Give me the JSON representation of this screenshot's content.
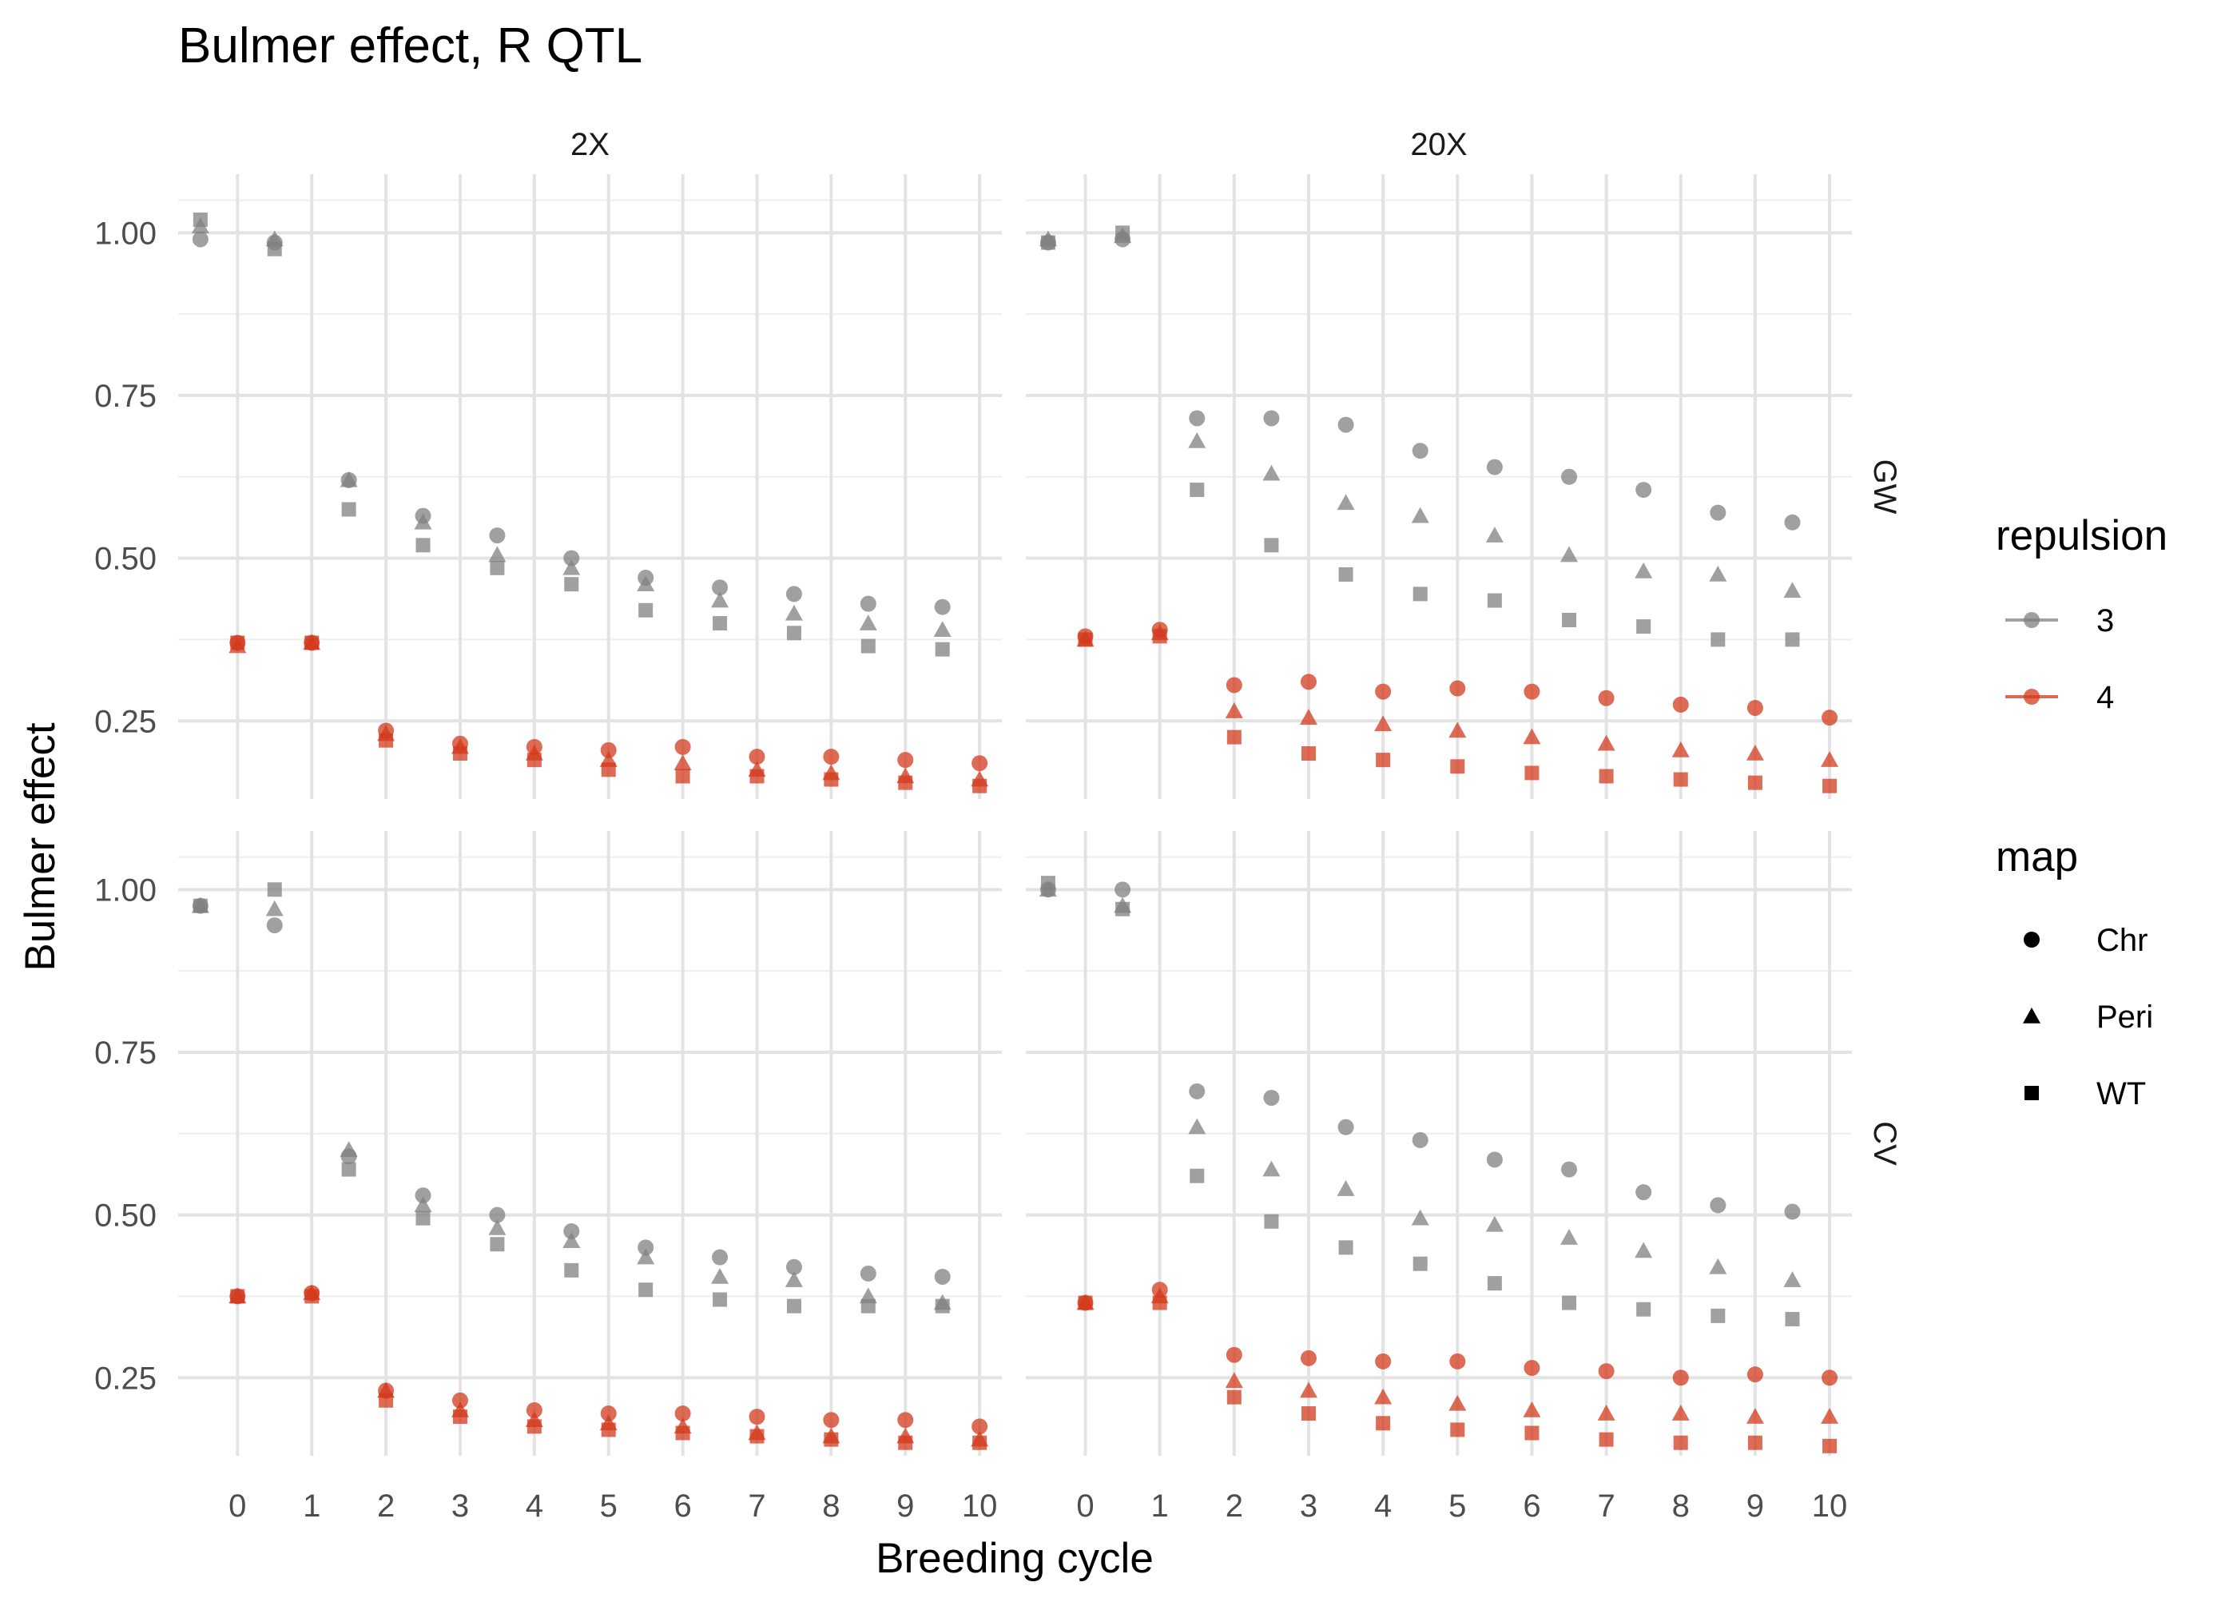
{
  "chart_data": {
    "type": "scatter",
    "title": "Bulmer effect, R QTL",
    "xlabel": "Breeding cycle",
    "ylabel": "Bulmer effect",
    "x_ticks": [
      0,
      1,
      2,
      3,
      4,
      5,
      6,
      7,
      8,
      9,
      10
    ],
    "x_range": [
      -0.8,
      10.3
    ],
    "y_range": [
      0.13,
      1.09
    ],
    "y_ticks": [
      0.25,
      0.5,
      0.75,
      1.0
    ],
    "y_tick_labels": [
      "0.25",
      "0.50",
      "0.75",
      "1.00"
    ],
    "columns": [
      "2X",
      "20X"
    ],
    "rows": [
      "GW",
      "CV"
    ],
    "grid": true,
    "legend_position": "right",
    "colors": {
      "repulsion_3": "#808080",
      "repulsion_4": "#d3391c",
      "grid_major": "#e3e3e3",
      "grid_minor": "#eeeeee",
      "text": "#4d4d4d"
    },
    "legend": {
      "repulsion_title": "repulsion",
      "repulsion_items": [
        "3",
        "4"
      ],
      "map_title": "map",
      "map_items": [
        {
          "label": "Chr",
          "shape": "circle"
        },
        {
          "label": "Peri",
          "shape": "triangle"
        },
        {
          "label": "WT",
          "shape": "square"
        }
      ]
    },
    "panels": [
      {
        "column": "2X",
        "row": "GW",
        "series": [
          {
            "repulsion": "3",
            "x": [
              -0.5,
              0.5,
              1.5,
              2.5,
              3.5,
              4.5,
              5.5,
              6.5,
              7.5,
              8.5,
              9.5
            ],
            "Chr": [
              0.99,
              0.985,
              0.62,
              0.565,
              0.535,
              0.5,
              0.47,
              0.455,
              0.445,
              0.43,
              0.425
            ],
            "Peri": [
              1.01,
              0.99,
              0.62,
              0.555,
              0.505,
              0.485,
              0.46,
              0.435,
              0.415,
              0.4,
              0.39
            ],
            "WT": [
              1.02,
              0.975,
              0.575,
              0.52,
              0.485,
              0.46,
              0.42,
              0.4,
              0.385,
              0.365,
              0.36
            ]
          },
          {
            "repulsion": "4",
            "x": [
              0,
              1,
              2,
              3,
              4,
              5,
              6,
              7,
              8,
              9,
              10
            ],
            "Chr": [
              0.37,
              0.37,
              0.235,
              0.215,
              0.21,
              0.205,
              0.21,
              0.195,
              0.195,
              0.19,
              0.185
            ],
            "Peri": [
              0.365,
              0.37,
              0.23,
              0.21,
              0.2,
              0.19,
              0.185,
              0.175,
              0.17,
              0.165,
              0.16
            ],
            "WT": [
              0.37,
              0.37,
              0.22,
              0.2,
              0.19,
              0.175,
              0.165,
              0.165,
              0.16,
              0.155,
              0.15
            ]
          }
        ]
      },
      {
        "column": "20X",
        "row": "GW",
        "series": [
          {
            "repulsion": "3",
            "x": [
              -0.5,
              0.5,
              1.5,
              2.5,
              3.5,
              4.5,
              5.5,
              6.5,
              7.5,
              8.5,
              9.5
            ],
            "Chr": [
              0.985,
              0.99,
              0.715,
              0.715,
              0.705,
              0.665,
              0.64,
              0.625,
              0.605,
              0.57,
              0.555
            ],
            "Peri": [
              0.99,
              0.995,
              0.68,
              0.63,
              0.585,
              0.565,
              0.535,
              0.505,
              0.48,
              0.475,
              0.45
            ],
            "WT": [
              0.985,
              1.0,
              0.605,
              0.52,
              0.475,
              0.445,
              0.435,
              0.405,
              0.395,
              0.375,
              0.375
            ]
          },
          {
            "repulsion": "4",
            "x": [
              0,
              1,
              2,
              3,
              4,
              5,
              6,
              7,
              8,
              9,
              10
            ],
            "Chr": [
              0.38,
              0.39,
              0.305,
              0.31,
              0.295,
              0.3,
              0.295,
              0.285,
              0.275,
              0.27,
              0.255
            ],
            "Peri": [
              0.375,
              0.385,
              0.265,
              0.255,
              0.245,
              0.235,
              0.225,
              0.215,
              0.205,
              0.2,
              0.19
            ],
            "WT": [
              0.375,
              0.38,
              0.225,
              0.2,
              0.19,
              0.18,
              0.17,
              0.165,
              0.16,
              0.155,
              0.15
            ]
          }
        ]
      },
      {
        "column": "2X",
        "row": "CV",
        "series": [
          {
            "repulsion": "3",
            "x": [
              -0.5,
              0.5,
              1.5,
              2.5,
              3.5,
              4.5,
              5.5,
              6.5,
              7.5,
              8.5,
              9.5
            ],
            "Chr": [
              0.975,
              0.945,
              0.59,
              0.53,
              0.5,
              0.475,
              0.45,
              0.435,
              0.42,
              0.41,
              0.405
            ],
            "Peri": [
              0.975,
              0.97,
              0.6,
              0.515,
              0.48,
              0.46,
              0.435,
              0.405,
              0.4,
              0.375,
              0.365
            ],
            "WT": [
              0.975,
              1.0,
              0.57,
              0.495,
              0.455,
              0.415,
              0.385,
              0.37,
              0.36,
              0.36,
              0.36
            ]
          },
          {
            "repulsion": "4",
            "x": [
              0,
              1,
              2,
              3,
              4,
              5,
              6,
              7,
              8,
              9,
              10
            ],
            "Chr": [
              0.375,
              0.38,
              0.23,
              0.215,
              0.2,
              0.195,
              0.195,
              0.19,
              0.185,
              0.185,
              0.175
            ],
            "Peri": [
              0.375,
              0.38,
              0.23,
              0.2,
              0.185,
              0.18,
              0.175,
              0.165,
              0.16,
              0.16,
              0.155
            ],
            "WT": [
              0.375,
              0.375,
              0.215,
              0.19,
              0.175,
              0.17,
              0.165,
              0.16,
              0.155,
              0.15,
              0.15
            ]
          }
        ]
      },
      {
        "column": "20X",
        "row": "CV",
        "series": [
          {
            "repulsion": "3",
            "x": [
              -0.5,
              0.5,
              1.5,
              2.5,
              3.5,
              4.5,
              5.5,
              6.5,
              7.5,
              8.5,
              9.5
            ],
            "Chr": [
              1.0,
              1.0,
              0.69,
              0.68,
              0.635,
              0.615,
              0.585,
              0.57,
              0.535,
              0.515,
              0.505
            ],
            "Peri": [
              1.0,
              0.975,
              0.635,
              0.57,
              0.54,
              0.495,
              0.485,
              0.465,
              0.445,
              0.42,
              0.4
            ],
            "WT": [
              1.01,
              0.97,
              0.56,
              0.49,
              0.45,
              0.425,
              0.395,
              0.365,
              0.355,
              0.345,
              0.34
            ]
          },
          {
            "repulsion": "4",
            "x": [
              0,
              1,
              2,
              3,
              4,
              5,
              6,
              7,
              8,
              9,
              10
            ],
            "Chr": [
              0.365,
              0.385,
              0.285,
              0.28,
              0.275,
              0.275,
              0.265,
              0.26,
              0.25,
              0.255,
              0.25
            ],
            "Peri": [
              0.365,
              0.375,
              0.245,
              0.23,
              0.22,
              0.21,
              0.2,
              0.195,
              0.195,
              0.19,
              0.19
            ],
            "WT": [
              0.365,
              0.365,
              0.22,
              0.195,
              0.18,
              0.17,
              0.165,
              0.155,
              0.15,
              0.15,
              0.145
            ]
          }
        ]
      }
    ]
  }
}
